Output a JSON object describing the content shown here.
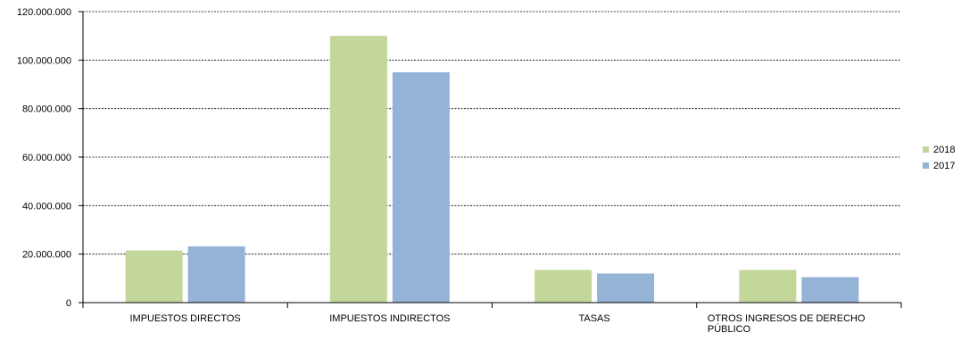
{
  "chart_data": {
    "type": "bar",
    "title": "",
    "xlabel": "",
    "ylabel": "",
    "ylim": [
      0,
      120000000
    ],
    "y_ticks": [
      0,
      20000000,
      40000000,
      60000000,
      80000000,
      100000000,
      120000000
    ],
    "y_tick_labels": [
      "0",
      "20.000.000",
      "40.000.000",
      "60.000.000",
      "80.000.000",
      "100.000.000",
      "120.000.000"
    ],
    "grid": "horizontal dotted",
    "legend_position": "right",
    "categories": [
      [
        "IMPUESTOS DIRECTOS"
      ],
      [
        "IMPUESTOS INDIRECTOS"
      ],
      [
        "TASAS"
      ],
      [
        "OTROS INGRESOS DE DERECHO",
        "PÚBLICO"
      ]
    ],
    "series": [
      {
        "name": "2018",
        "color": "#c4d79b",
        "values": [
          21500000,
          110000000,
          13500000,
          13500000
        ]
      },
      {
        "name": "2017",
        "color": "#95b3d7",
        "values": [
          23200000,
          95000000,
          12000000,
          10500000
        ]
      }
    ]
  }
}
